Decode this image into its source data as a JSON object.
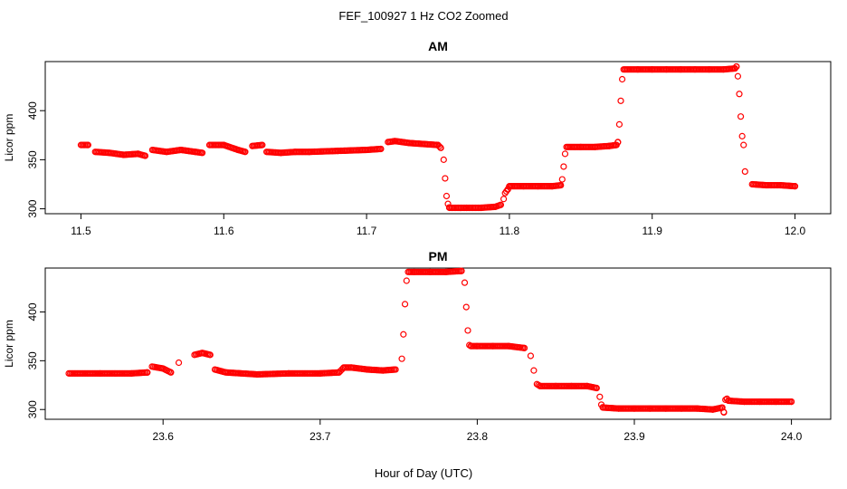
{
  "figure": {
    "title": "FEF_100927  1 Hz CO2 Zoomed",
    "xlabel": "Hour of Day (UTC)",
    "series_color": "#ff0000"
  },
  "chart_data": [
    {
      "type": "scatter",
      "title": "AM",
      "xlabel": "",
      "ylabel": "Licor ppm",
      "xlim": [
        11.475,
        12.025
      ],
      "ylim": [
        295,
        450
      ],
      "xticks": [
        "11.5",
        "11.6",
        "11.7",
        "11.8",
        "11.9",
        "12.0"
      ],
      "yticks": [
        "300",
        "350",
        "400"
      ],
      "grid": false,
      "legend": "none",
      "series": [
        {
          "marker": "open-circle",
          "color": "#ff0000",
          "x": [
            11.5,
            11.505,
            11.51,
            11.52,
            11.53,
            11.54,
            11.545,
            11.55,
            11.56,
            11.57,
            11.58,
            11.585,
            11.59,
            11.6,
            11.61,
            11.615,
            11.62,
            11.627,
            11.63,
            11.64,
            11.65,
            11.66,
            11.68,
            11.7,
            11.71,
            11.715,
            11.72,
            11.73,
            11.74,
            11.75,
            11.752,
            11.754,
            11.755,
            11.756,
            11.757,
            11.758,
            11.77,
            11.78,
            11.79,
            11.794,
            11.796,
            11.797,
            11.799,
            11.8,
            11.81,
            11.82,
            11.83,
            11.836,
            11.837,
            11.838,
            11.839,
            11.84,
            11.85,
            11.86,
            11.87,
            11.875,
            11.876,
            11.877,
            11.878,
            11.879,
            11.88,
            11.89,
            11.9,
            11.91,
            11.92,
            11.93,
            11.94,
            11.95,
            11.958,
            11.959,
            11.96,
            11.961,
            11.962,
            11.963,
            11.964,
            11.965,
            11.97,
            11.98,
            11.99,
            12.0
          ],
          "y": [
            365,
            365,
            358,
            357,
            355,
            356,
            354,
            360,
            358,
            360,
            358,
            357,
            365,
            365,
            360,
            358,
            364,
            365,
            358,
            357,
            358,
            358,
            359,
            360,
            361,
            368,
            369,
            367,
            366,
            365,
            362,
            350,
            331,
            313,
            305,
            301,
            301,
            301,
            302,
            304,
            310,
            316,
            320,
            323,
            323,
            323,
            323,
            324,
            330,
            343,
            356,
            363,
            363,
            363,
            364,
            365,
            368,
            386,
            410,
            432,
            442,
            442,
            442,
            442,
            442,
            442,
            442,
            442,
            443,
            445,
            435,
            417,
            394,
            374,
            365,
            338,
            325,
            324,
            324,
            323
          ]
        }
      ]
    },
    {
      "type": "scatter",
      "title": "PM",
      "xlabel": "Hour of Day (UTC)",
      "ylabel": "Licor ppm",
      "xlim": [
        23.525,
        24.025
      ],
      "ylim": [
        290,
        445
      ],
      "xticks": [
        "23.6",
        "23.7",
        "23.8",
        "23.9",
        "24.0"
      ],
      "yticks": [
        "300",
        "350",
        "400"
      ],
      "grid": false,
      "legend": "none",
      "series": [
        {
          "marker": "open-circle",
          "color": "#ff0000",
          "x": [
            23.54,
            23.56,
            23.58,
            23.59,
            23.593,
            23.6,
            23.605,
            23.61,
            23.62,
            23.625,
            23.63,
            23.633,
            23.64,
            23.66,
            23.68,
            23.7,
            23.712,
            23.715,
            23.72,
            23.73,
            23.74,
            23.748,
            23.752,
            23.753,
            23.754,
            23.755,
            23.756,
            23.76,
            23.77,
            23.78,
            23.79,
            23.792,
            23.793,
            23.794,
            23.795,
            23.796,
            23.8,
            23.81,
            23.82,
            23.83,
            23.834,
            23.836,
            23.838,
            23.84,
            23.85,
            23.86,
            23.87,
            23.876,
            23.878,
            23.879,
            23.88,
            23.89,
            23.9,
            23.91,
            23.92,
            23.93,
            23.94,
            23.95,
            23.956,
            23.957,
            23.958,
            23.959,
            23.96,
            23.97,
            23.98,
            23.99,
            24.0
          ],
          "y": [
            337,
            337,
            337,
            338,
            344,
            342,
            338,
            348,
            356,
            358,
            356,
            341,
            338,
            336,
            337,
            337,
            338,
            343,
            343,
            341,
            340,
            341,
            352,
            377,
            408,
            432,
            441,
            441,
            441,
            441,
            442,
            430,
            405,
            381,
            366,
            365,
            365,
            365,
            365,
            363,
            355,
            340,
            326,
            324,
            324,
            324,
            324,
            322,
            313,
            305,
            302,
            301,
            301,
            301,
            301,
            301,
            301,
            300,
            302,
            297,
            310,
            311,
            309,
            308,
            308,
            308,
            308
          ]
        }
      ]
    }
  ]
}
